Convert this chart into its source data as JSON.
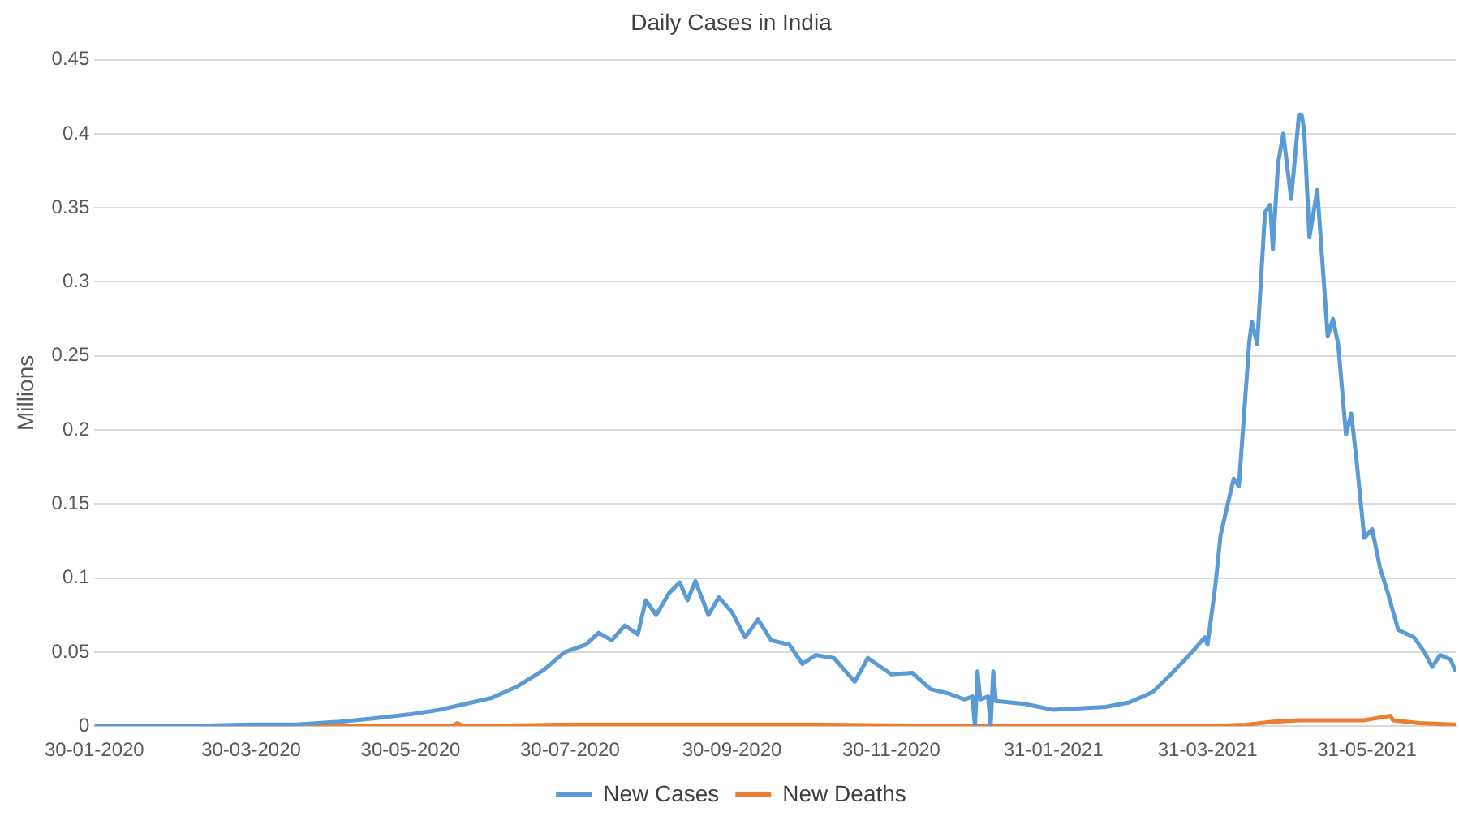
{
  "chart_data": {
    "type": "line",
    "title": "Daily Cases in India",
    "ylabel": "Millions",
    "xlim": [
      "2020-01-30",
      "2021-07-04"
    ],
    "xticks": [
      {
        "value": "2020-01-30",
        "label": "30-01-2020"
      },
      {
        "value": "2020-03-30",
        "label": "30-03-2020"
      },
      {
        "value": "2020-05-30",
        "label": "30-05-2020"
      },
      {
        "value": "2020-07-30",
        "label": "30-07-2020"
      },
      {
        "value": "2020-09-30",
        "label": "30-09-2020"
      },
      {
        "value": "2020-11-30",
        "label": "30-11-2020"
      },
      {
        "value": "2021-01-31",
        "label": "31-01-2021"
      },
      {
        "value": "2021-03-31",
        "label": "31-03-2021"
      },
      {
        "value": "2021-05-31",
        "label": "31-05-2021"
      }
    ],
    "ylim": [
      0,
      0.45
    ],
    "yticks": [
      0,
      0.05,
      0.1,
      0.15,
      0.2,
      0.25,
      0.3,
      0.35,
      0.4,
      0.45
    ],
    "grid": "y",
    "legend": "bottom",
    "marker": "none",
    "line_style": "solid",
    "series": [
      {
        "name": "New Cases",
        "color": "#5b9bd5",
        "x": [
          "2020-01-30",
          "2020-03-01",
          "2020-03-30",
          "2020-04-15",
          "2020-05-03",
          "2020-05-15",
          "2020-05-30",
          "2020-06-10",
          "2020-06-20",
          "2020-06-30",
          "2020-07-10",
          "2020-07-20",
          "2020-07-28",
          "2020-08-05",
          "2020-08-10",
          "2020-08-15",
          "2020-08-20",
          "2020-08-25",
          "2020-08-28",
          "2020-09-01",
          "2020-09-06",
          "2020-09-10",
          "2020-09-13",
          "2020-09-16",
          "2020-09-21",
          "2020-09-25",
          "2020-09-30",
          "2020-10-05",
          "2020-10-10",
          "2020-10-15",
          "2020-10-22",
          "2020-10-27",
          "2020-11-01",
          "2020-11-08",
          "2020-11-16",
          "2020-11-21",
          "2020-11-30",
          "2020-12-08",
          "2020-12-15",
          "2020-12-22",
          "2020-12-28",
          "2020-12-31",
          "2021-01-01",
          "2021-01-02",
          "2021-01-03",
          "2021-01-06",
          "2021-01-07",
          "2021-01-08",
          "2021-01-09",
          "2021-01-20",
          "2021-01-31",
          "2021-02-10",
          "2021-02-20",
          "2021-03-01",
          "2021-03-10",
          "2021-03-17",
          "2021-03-24",
          "2021-03-30",
          "2021-03-31",
          "2021-04-03",
          "2021-04-05",
          "2021-04-10",
          "2021-04-12",
          "2021-04-16",
          "2021-04-17",
          "2021-04-19",
          "2021-04-22",
          "2021-04-24",
          "2021-04-25",
          "2021-04-27",
          "2021-04-29",
          "2021-05-02",
          "2021-05-05",
          "2021-05-06",
          "2021-05-07",
          "2021-05-09",
          "2021-05-12",
          "2021-05-16",
          "2021-05-18",
          "2021-05-20",
          "2021-05-23",
          "2021-05-25",
          "2021-05-27",
          "2021-05-30",
          "2021-06-02",
          "2021-06-05",
          "2021-06-08",
          "2021-06-12",
          "2021-06-18",
          "2021-06-22",
          "2021-06-25",
          "2021-06-28",
          "2021-07-02",
          "2021-07-04"
        ],
        "values": [
          0,
          0,
          0.001,
          0.001,
          0.003,
          0.005,
          0.008,
          0.011,
          0.015,
          0.019,
          0.027,
          0.038,
          0.05,
          0.055,
          0.063,
          0.058,
          0.068,
          0.062,
          0.085,
          0.075,
          0.09,
          0.097,
          0.085,
          0.098,
          0.075,
          0.087,
          0.077,
          0.06,
          0.072,
          0.058,
          0.055,
          0.042,
          0.048,
          0.046,
          0.03,
          0.046,
          0.035,
          0.036,
          0.025,
          0.022,
          0.018,
          0.02,
          0,
          0.037,
          0.018,
          0.02,
          0,
          0.037,
          0.017,
          0.015,
          0.011,
          0.012,
          0.013,
          0.016,
          0.023,
          0.035,
          0.048,
          0.06,
          0.055,
          0.095,
          0.129,
          0.167,
          0.162,
          0.26,
          0.273,
          0.258,
          0.347,
          0.352,
          0.322,
          0.38,
          0.4,
          0.356,
          0.413,
          0.413,
          0.402,
          0.33,
          0.362,
          0.263,
          0.275,
          0.258,
          0.197,
          0.211,
          0.18,
          0.127,
          0.133,
          0.107,
          0.09,
          0.065,
          0.06,
          0.05,
          0.04,
          0.048,
          0.045,
          0.037
        ]
      },
      {
        "name": "New Deaths",
        "color": "#ed7d31",
        "x": [
          "2020-03-11",
          "2020-05-15",
          "2020-06-15",
          "2020-06-17",
          "2020-06-19",
          "2020-08-01",
          "2020-09-15",
          "2020-11-01",
          "2021-01-01",
          "2021-02-15",
          "2021-03-31",
          "2021-04-15",
          "2021-04-25",
          "2021-05-05",
          "2021-05-20",
          "2021-05-30",
          "2021-06-09",
          "2021-06-10",
          "2021-06-20",
          "2021-07-04"
        ],
        "values": [
          0,
          0,
          0,
          0.002,
          0,
          0.001,
          0.001,
          0.001,
          0,
          0,
          0,
          0.001,
          0.003,
          0.004,
          0.004,
          0.004,
          0.007,
          0.004,
          0.002,
          0.001
        ]
      }
    ]
  }
}
